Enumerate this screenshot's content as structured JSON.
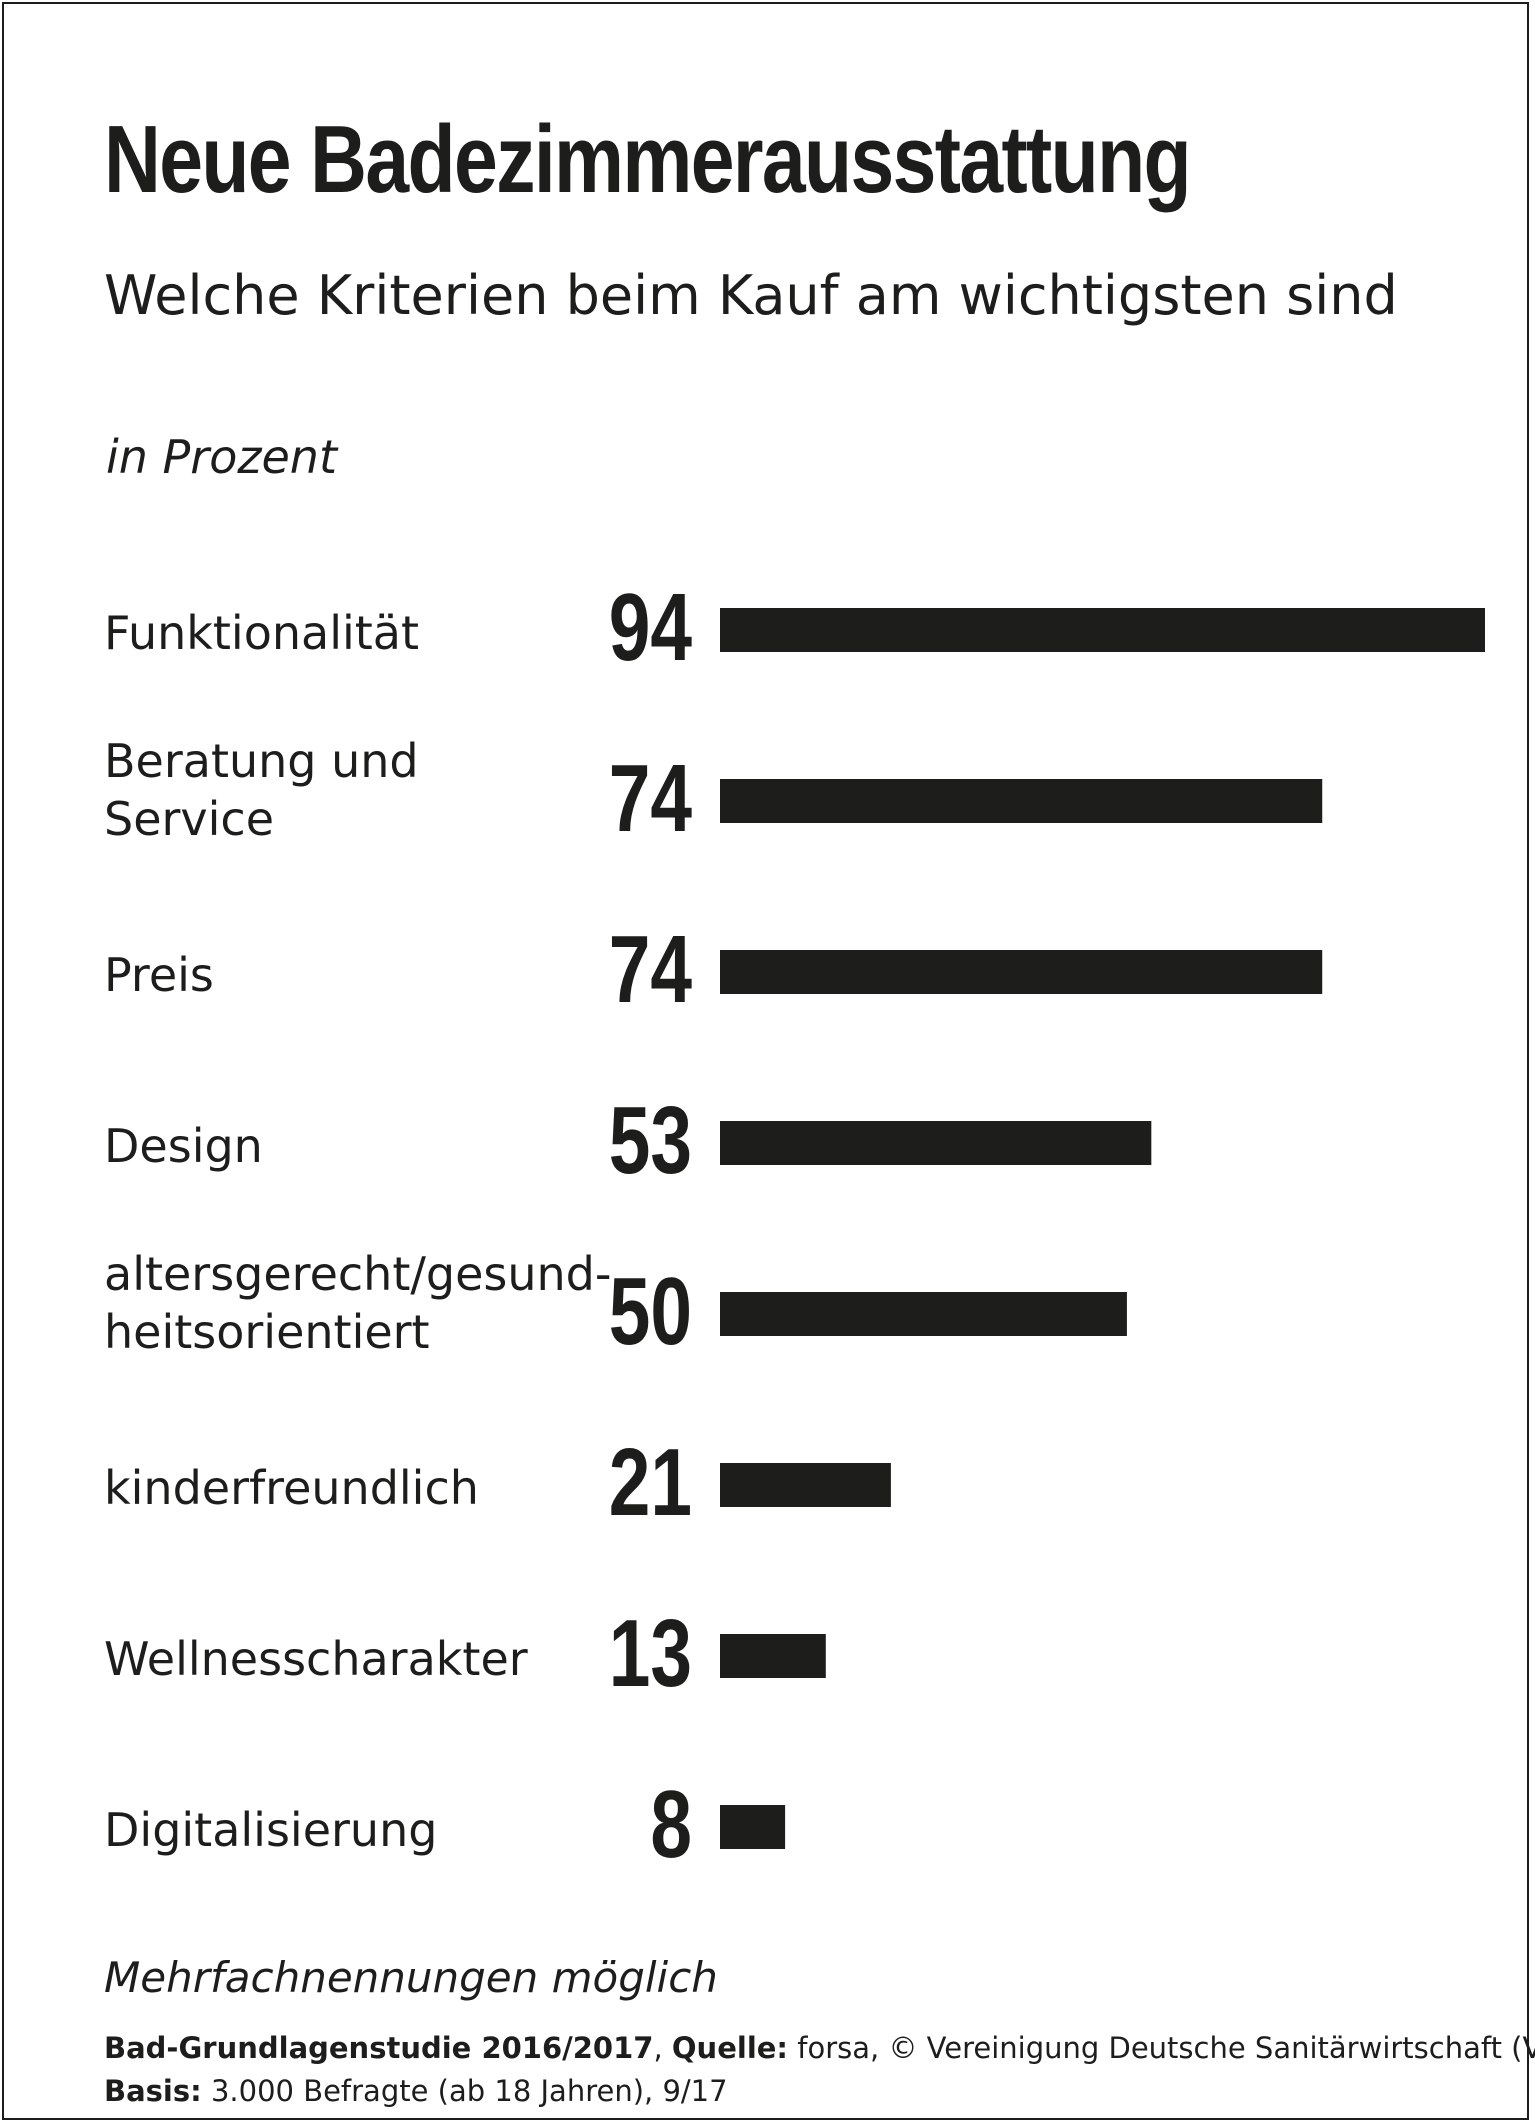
{
  "chart_data": {
    "type": "bar",
    "orientation": "horizontal",
    "title": "Neue Badezimmerausstattung",
    "subtitle": "Welche Kriterien beim Kauf am wichtigsten sind",
    "unit": "in Prozent",
    "categories": [
      [
        "Funktionalität"
      ],
      [
        "Beratung und",
        "Service"
      ],
      [
        "Preis"
      ],
      [
        "Design"
      ],
      [
        "altersgerecht/gesund-",
        "heitsorientiert"
      ],
      [
        "kinderfreundlich"
      ],
      [
        "Wellnesscharakter"
      ],
      [
        "Digitalisierung"
      ]
    ],
    "values": [
      94,
      74,
      74,
      53,
      50,
      21,
      13,
      8
    ],
    "xlim": [
      0,
      94
    ],
    "grid": false,
    "data_labels": true,
    "bar_color": "#1d1d1b"
  },
  "footer": {
    "note": "Mehrfachnennungen möglich",
    "line1_bold_a": "Bad-Grundlagenstudie 2016/2017",
    "line1_sep": ", ",
    "line1_bold_b": "Quelle:",
    "line1_rest": " forsa, © Vereinigung Deutsche Sanitärwirtschaft (VDS),",
    "line2_bold": "Basis:",
    "line2_rest": " 3.000 Befragte (ab 18 Jahren), 9/17"
  }
}
